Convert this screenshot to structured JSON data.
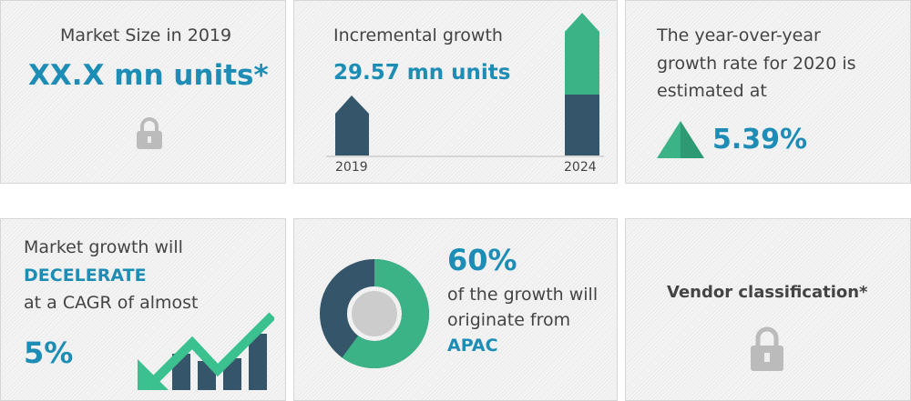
{
  "market_size": {
    "label": "Market Size in 2019",
    "value": "XX.X mn units*",
    "icon": "lock-icon"
  },
  "incremental": {
    "label": "Incremental growth",
    "value": "29.57 mn units",
    "year_start": "2019",
    "year_end": "2024"
  },
  "yoy": {
    "line1": "The year-over-year",
    "line2": "growth rate for 2020 is",
    "line3": "estimated at",
    "value": "5.39%"
  },
  "cagr": {
    "line1": "Market growth will",
    "highlight": "DECELERATE",
    "line2": "at a CAGR of almost",
    "value": "5%"
  },
  "region": {
    "value": "60%",
    "line1": "of the growth will",
    "line2": "originate from",
    "region": "APAC",
    "share": 0.6
  },
  "vendor": {
    "label": "Vendor classification*",
    "icon": "lock-icon"
  },
  "colors": {
    "blue": "#1d8db5",
    "dark": "#35566a",
    "green": "#3bb387"
  }
}
